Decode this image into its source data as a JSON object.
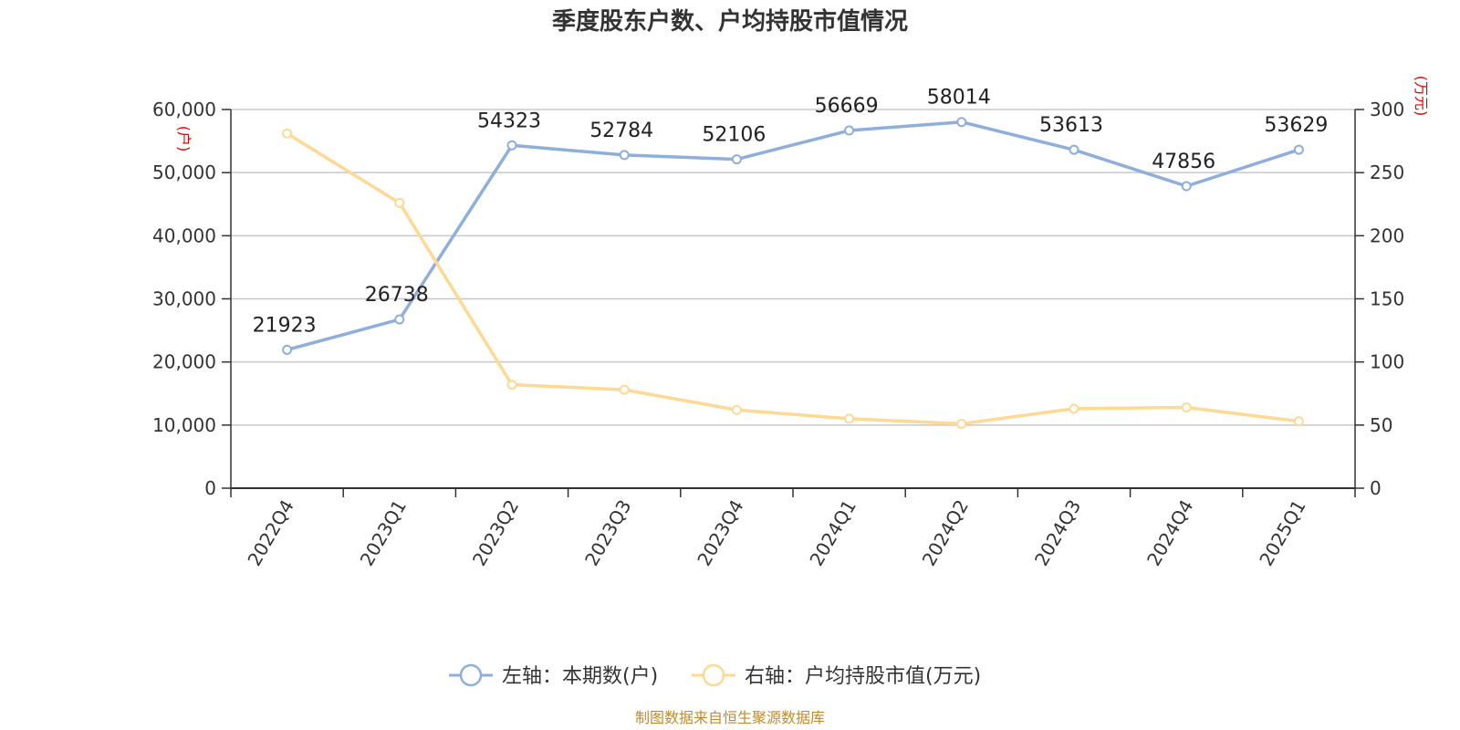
{
  "chart_data": {
    "type": "line",
    "title": "季度股东户数、户均持股市值情况",
    "categories": [
      "2022Q4",
      "2023Q1",
      "2023Q2",
      "2023Q3",
      "2023Q4",
      "2024Q1",
      "2024Q2",
      "2024Q3",
      "2024Q4",
      "2025Q1"
    ],
    "left_axis": {
      "unit": "(户)",
      "ylim": [
        0,
        60000
      ],
      "ticks": [
        0,
        10000,
        20000,
        30000,
        40000,
        50000,
        60000
      ],
      "tick_labels": [
        "0",
        "10,000",
        "20,000",
        "30,000",
        "40,000",
        "50,000",
        "60,000"
      ]
    },
    "right_axis": {
      "unit": "(万元)",
      "ylim": [
        0,
        300
      ],
      "ticks": [
        0,
        50,
        100,
        150,
        200,
        250,
        300
      ],
      "tick_labels": [
        "0",
        "50",
        "100",
        "150",
        "200",
        "250",
        "300"
      ]
    },
    "series": [
      {
        "name": "左轴：本期数(户)",
        "axis": "left",
        "color": "#8eaedb",
        "values": [
          21923,
          26738,
          54323,
          52784,
          52106,
          56669,
          58014,
          53613,
          47856,
          53629
        ],
        "data_labels": [
          "21923",
          "26738",
          "54323",
          "52784",
          "52106",
          "56669",
          "58014",
          "53613",
          "47856",
          "53629"
        ]
      },
      {
        "name": "右轴：户均持股市值(万元)",
        "axis": "right",
        "color": "#fdd993",
        "values": [
          281,
          226,
          82,
          78,
          62,
          55,
          51,
          63,
          64,
          53
        ]
      }
    ],
    "grid": true,
    "legend_position": "bottom-center"
  },
  "source_text": "制图数据来自恒生聚源数据库"
}
